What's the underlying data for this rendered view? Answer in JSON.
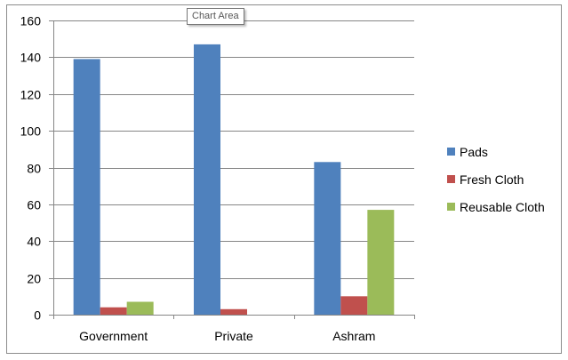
{
  "tooltip": {
    "text": "Chart Area"
  },
  "chart_data": {
    "type": "bar",
    "title": "",
    "xlabel": "",
    "ylabel": "",
    "categories": [
      "Government",
      "Private",
      "Ashram"
    ],
    "series": [
      {
        "name": "Pads",
        "values": [
          139,
          147,
          83
        ],
        "color": "#4f81bd"
      },
      {
        "name": "Fresh Cloth",
        "values": [
          4,
          3,
          10
        ],
        "color": "#c0504d"
      },
      {
        "name": "Reusable Cloth",
        "values": [
          7,
          0,
          57
        ],
        "color": "#9bbb59"
      }
    ],
    "ylim": [
      0,
      160
    ],
    "yticks": [
      0,
      20,
      40,
      60,
      80,
      100,
      120,
      140,
      160
    ],
    "grid": true,
    "legend": "right"
  }
}
